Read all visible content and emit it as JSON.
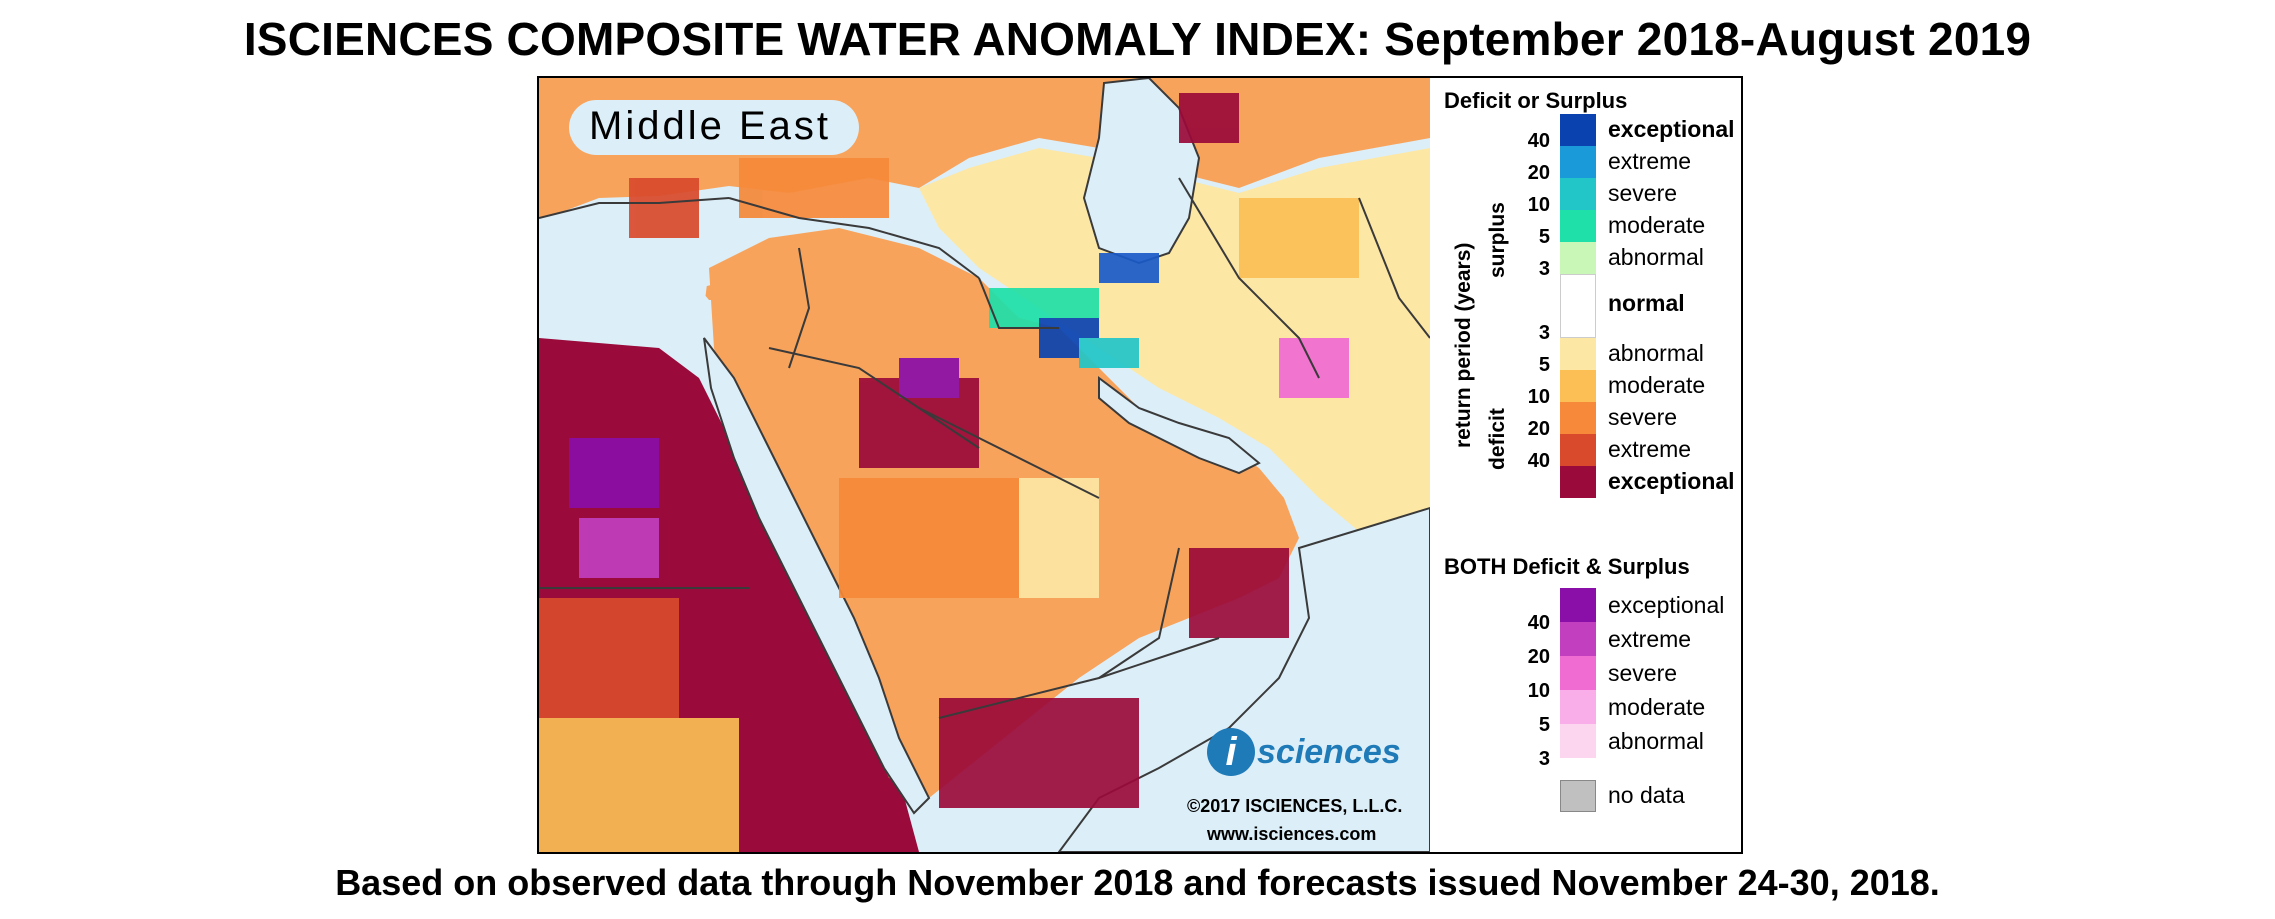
{
  "header": {
    "title": "ISCIENCES COMPOSITE WATER ANOMALY INDEX: September 2018-August 2019"
  },
  "footer": {
    "text": "Based on observed data through November 2018 and forecasts issued November 24-30, 2018."
  },
  "map": {
    "region_label": "Middle East",
    "logo_text": "sciences",
    "logo_letter": "i",
    "copyright": "©2017 ISCIENCES, L.L.C.",
    "website": "www.isciences.com",
    "colors": {
      "ocean": "#dceef8",
      "land_base": "#f7a35c",
      "boundary": "#3a3a3a"
    }
  },
  "legend": {
    "title1": "Deficit or Surplus",
    "axis_label": "return period (years)",
    "surplus_label": "surplus",
    "deficit_label": "deficit",
    "surplus": [
      {
        "label": "exceptional",
        "color": "#0a43b0",
        "bold": true
      },
      {
        "label": "extreme",
        "color": "#1a9ad9",
        "bold": false
      },
      {
        "label": "severe",
        "color": "#22c6c8",
        "bold": false
      },
      {
        "label": "moderate",
        "color": "#1fe0a8",
        "bold": false
      },
      {
        "label": "abnormal",
        "color": "#c8f7b8",
        "bold": false
      }
    ],
    "surplus_ticks": [
      "40",
      "20",
      "10",
      "5",
      "3"
    ],
    "normal_label": "normal",
    "normal_color": "#ffffff",
    "deficit": [
      {
        "label": "abnormal",
        "color": "#fde7a4",
        "bold": false
      },
      {
        "label": "moderate",
        "color": "#fbbf56",
        "bold": false
      },
      {
        "label": "severe",
        "color": "#f6893a",
        "bold": false
      },
      {
        "label": "extreme",
        "color": "#d94a2c",
        "bold": false
      },
      {
        "label": "exceptional",
        "color": "#9a0a3a",
        "bold": true
      }
    ],
    "deficit_ticks": [
      "3",
      "5",
      "10",
      "20",
      "40"
    ],
    "title2": "BOTH Deficit & Surplus",
    "both": [
      {
        "label": "exceptional",
        "color": "#8a0ea8"
      },
      {
        "label": "extreme",
        "color": "#c23fbf"
      },
      {
        "label": "severe",
        "color": "#f06bd2"
      },
      {
        "label": "moderate",
        "color": "#f9aeea"
      },
      {
        "label": "abnormal",
        "color": "#fcd6ef"
      }
    ],
    "both_ticks": [
      "40",
      "20",
      "10",
      "5",
      "3"
    ],
    "nodata_label": "no data",
    "nodata_color": "#c0c0c0"
  }
}
